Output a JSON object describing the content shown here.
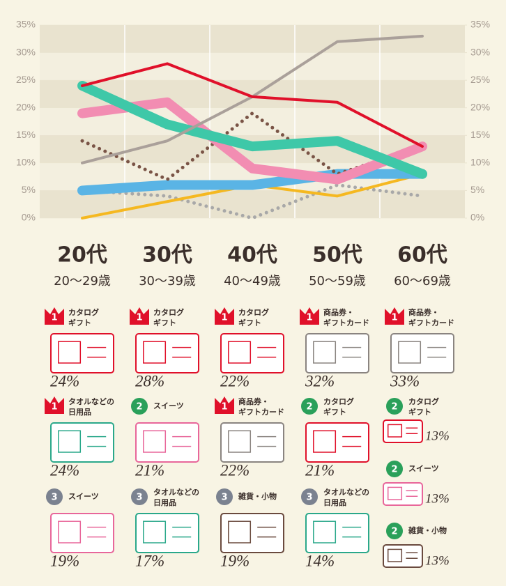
{
  "chart_data": {
    "type": "line",
    "categories": [
      "20代",
      "30代",
      "40代",
      "50代",
      "60代"
    ],
    "ylim": [
      0,
      35
    ],
    "yticks": [
      {
        "value": 0,
        "label": "0%"
      },
      {
        "value": 5,
        "label": "5%"
      },
      {
        "value": 10,
        "label": "10%"
      },
      {
        "value": 15,
        "label": "15%"
      },
      {
        "value": 20,
        "label": "20%"
      },
      {
        "value": 25,
        "label": "25%"
      },
      {
        "value": 30,
        "label": "30%"
      },
      {
        "value": 35,
        "label": "35%"
      }
    ],
    "y2lim": [
      0,
      35
    ],
    "y2ticks": [
      {
        "value": 0,
        "label": "0%"
      },
      {
        "value": 5,
        "label": "5%"
      },
      {
        "value": 10,
        "label": "10%"
      },
      {
        "value": 15,
        "label": "15%"
      },
      {
        "value": 20,
        "label": "20%"
      },
      {
        "value": 25,
        "label": "25%"
      },
      {
        "value": 30,
        "label": "30%"
      },
      {
        "value": 35,
        "label": "35%"
      }
    ],
    "series": [
      {
        "color": "#a8a8a8",
        "dotted": true,
        "values": [
          5,
          4,
          0,
          6,
          4
        ]
      },
      {
        "color": "#f5b820",
        "values": [
          0,
          3,
          6,
          4,
          8
        ]
      },
      {
        "color": "#5ab4e5",
        "thick": true,
        "values": [
          5,
          6,
          6,
          8,
          8
        ]
      },
      {
        "color": "#7a5446",
        "dotted": true,
        "values": [
          14,
          7,
          19,
          8,
          13
        ]
      },
      {
        "color": "#f28db2",
        "thick": true,
        "values": [
          19,
          21,
          9,
          7,
          13
        ]
      },
      {
        "color": "#3ec8a8",
        "thick": true,
        "values": [
          24,
          17,
          13,
          14,
          8
        ]
      },
      {
        "color": "#aaa09a",
        "values": [
          10,
          14,
          22,
          32,
          33
        ]
      },
      {
        "color": "#e0102a",
        "values": [
          24,
          28,
          22,
          21,
          13
        ]
      }
    ]
  },
  "columns": [
    {
      "range": "20〜29歳",
      "items": [
        {
          "rank": 1,
          "label": [
            "カタログ",
            "ギフト"
          ],
          "percent": "24%",
          "color": "#e0102a"
        },
        {
          "rank": 1,
          "label": [
            "タオルなどの",
            "日用品"
          ],
          "percent": "24%",
          "color": "#2aa88a"
        },
        {
          "rank": 3,
          "label": [
            "スイーツ"
          ],
          "percent": "19%",
          "color": "#e8669a"
        }
      ]
    },
    {
      "range": "30〜39歳",
      "items": [
        {
          "rank": 1,
          "label": [
            "カタログ",
            "ギフト"
          ],
          "percent": "28%",
          "color": "#e0102a"
        },
        {
          "rank": 2,
          "label": [
            "スイーツ"
          ],
          "percent": "21%",
          "color": "#e8669a"
        },
        {
          "rank": 3,
          "label": [
            "タオルなどの",
            "日用品"
          ],
          "percent": "17%",
          "color": "#2aa88a"
        }
      ]
    },
    {
      "range": "40〜49歳",
      "items": [
        {
          "rank": 1,
          "label": [
            "カタログ",
            "ギフト"
          ],
          "percent": "22%",
          "color": "#e0102a"
        },
        {
          "rank": 1,
          "label": [
            "商品券・",
            "ギフトカード"
          ],
          "percent": "22%",
          "color": "#8a8480"
        },
        {
          "rank": 3,
          "label": [
            "雑貨・小物"
          ],
          "percent": "19%",
          "color": "#6a4a3e"
        }
      ]
    },
    {
      "range": "50〜59歳",
      "items": [
        {
          "rank": 1,
          "label": [
            "商品券・",
            "ギフトカード"
          ],
          "percent": "32%",
          "color": "#8a8480"
        },
        {
          "rank": 2,
          "label": [
            "カタログ",
            "ギフト"
          ],
          "percent": "21%",
          "color": "#e0102a"
        },
        {
          "rank": 3,
          "label": [
            "タオルなどの",
            "日用品"
          ],
          "percent": "14%",
          "color": "#2aa88a"
        }
      ]
    },
    {
      "range": "60〜69歳",
      "items": [
        {
          "rank": 1,
          "label": [
            "商品券・",
            "ギフトカード"
          ],
          "percent": "33%",
          "color": "#8a8480"
        },
        {
          "rank": 2,
          "label": [
            "カタログ",
            "ギフト"
          ],
          "percent": "13%",
          "color": "#e0102a"
        },
        {
          "rank": 2,
          "label": [
            "スイーツ"
          ],
          "percent": "13%",
          "color": "#e8669a"
        },
        {
          "rank": 2,
          "label": [
            "雑貨・小物"
          ],
          "percent": "13%",
          "color": "#6a4a3e"
        }
      ]
    }
  ]
}
